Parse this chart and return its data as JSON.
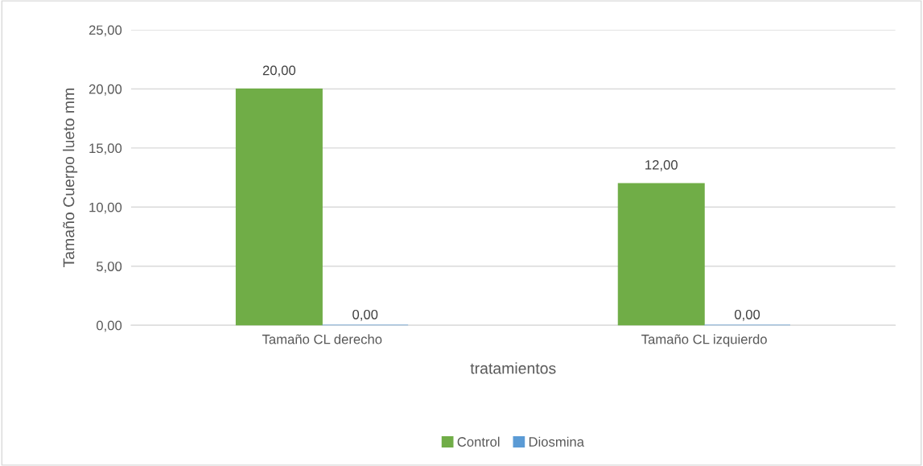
{
  "chart_data": {
    "type": "bar",
    "xlabel": "tratamientos",
    "ylabel": "Tamaño Cuerpo lueto mm",
    "categories": [
      "Tamaño CL derecho",
      "Tamaño CL izquierdo"
    ],
    "series": [
      {
        "name": "Control",
        "color": "#70ad47",
        "values": [
          20,
          12
        ],
        "value_labels": [
          "20,00",
          "12,00"
        ]
      },
      {
        "name": "Diosmina",
        "color": "#5b9bd5",
        "values": [
          0,
          0
        ],
        "value_labels": [
          "0,00",
          "0,00"
        ]
      }
    ],
    "ylim": [
      0,
      25
    ],
    "yticks": [
      {
        "value": 0,
        "label": "0,00"
      },
      {
        "value": 5,
        "label": "5,00"
      },
      {
        "value": 10,
        "label": "10,00"
      },
      {
        "value": 15,
        "label": "15,00"
      },
      {
        "value": 20,
        "label": "20,00"
      },
      {
        "value": 25,
        "label": "25,00"
      }
    ],
    "grid": "y",
    "legend": "bottom"
  }
}
